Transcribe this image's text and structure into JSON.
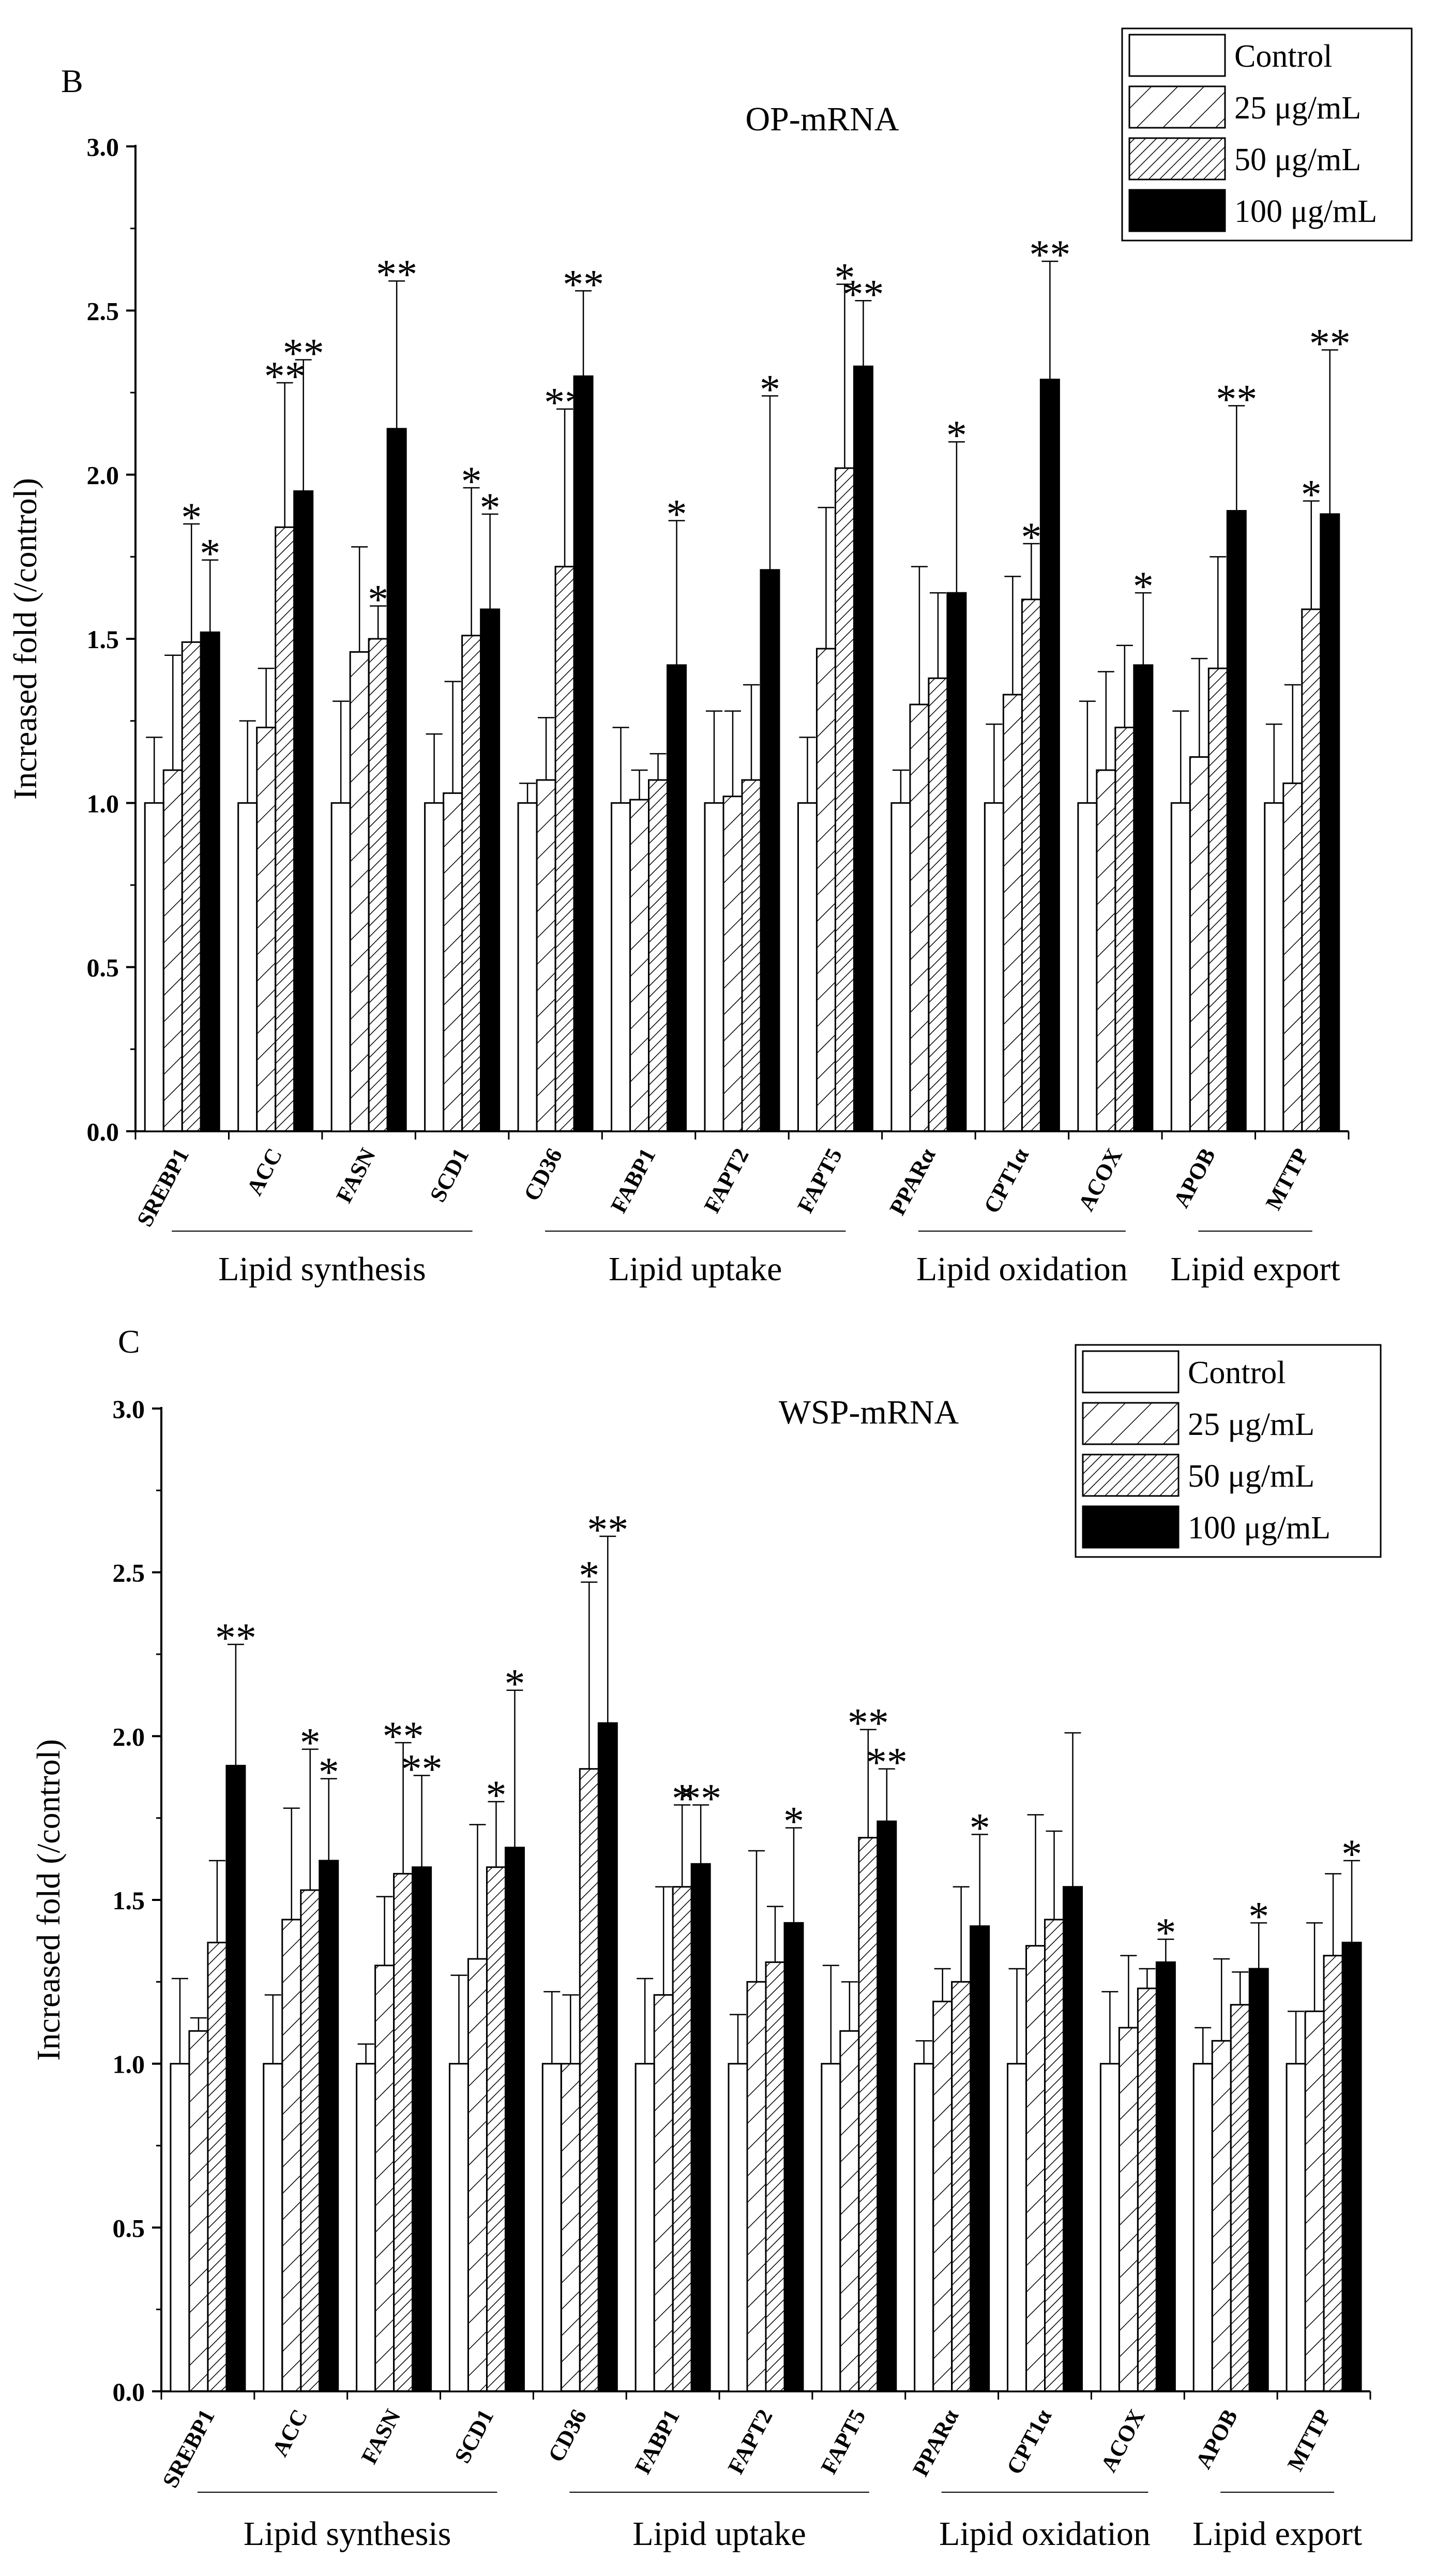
{
  "chart_data": [
    {
      "type": "bar",
      "panel_label": "B",
      "title": "OP-mRNA",
      "xlabel": "",
      "ylabel": "Increased fold (/control)",
      "ylim": [
        0,
        3
      ],
      "yticks": [
        "0.0",
        "0.5",
        "1.0",
        "1.5",
        "2.0",
        "2.5",
        "3.0"
      ],
      "grid": false,
      "legend_position": "top-right",
      "categories": [
        "SREBP1",
        "ACC",
        "FASN",
        "SCD1",
        "CD36",
        "FABP1",
        "FAPT2",
        "FAPT5",
        "PPARα",
        "CPT1α",
        "ACOX",
        "APOB",
        "MTTP"
      ],
      "groups": [
        {
          "label": "Lipid synthesis",
          "from": 0,
          "to": 3
        },
        {
          "label": "Lipid uptake",
          "from": 4,
          "to": 7
        },
        {
          "label": "Lipid oxidation",
          "from": 8,
          "to": 10
        },
        {
          "label": "Lipid export",
          "from": 11,
          "to": 12
        }
      ],
      "series": [
        {
          "name": "Control",
          "fill": "white",
          "values": [
            1,
            1,
            1,
            1,
            1,
            1,
            1,
            1,
            1,
            1,
            1,
            1,
            1
          ],
          "errors": [
            0.2,
            0.25,
            0.31,
            0.21,
            0.06,
            0.23,
            0.28,
            0.2,
            0.1,
            0.24,
            0.31,
            0.28,
            0.24
          ],
          "sig": [
            "",
            "",
            "",
            "",
            "",
            "",
            "",
            "",
            "",
            "",
            "",
            "",
            ""
          ]
        },
        {
          "name": "25 μg/mL",
          "fill": "sparse-hatch",
          "values": [
            1.1,
            1.23,
            1.46,
            1.03,
            1.07,
            1.01,
            1.02,
            1.47,
            1.3,
            1.33,
            1.1,
            1.14,
            1.06
          ],
          "errors": [
            0.35,
            0.18,
            0.32,
            0.34,
            0.19,
            0.09,
            0.26,
            0.43,
            0.42,
            0.36,
            0.3,
            0.3,
            0.3
          ],
          "sig": [
            "",
            "",
            "",
            "",
            "",
            "",
            "",
            "",
            "",
            "",
            "",
            "",
            ""
          ]
        },
        {
          "name": "50 μg/mL",
          "fill": "dense-hatch",
          "values": [
            1.49,
            1.84,
            1.5,
            1.51,
            1.72,
            1.07,
            1.07,
            2.02,
            1.38,
            1.62,
            1.23,
            1.41,
            1.59
          ],
          "errors": [
            0.36,
            0.44,
            0.1,
            0.45,
            0.48,
            0.08,
            0.29,
            0.56,
            0.26,
            0.17,
            0.25,
            0.34,
            0.33
          ],
          "sig": [
            "*",
            "**",
            "*",
            "*",
            "**",
            "",
            "",
            "*",
            "",
            "*",
            "",
            "",
            "*"
          ]
        },
        {
          "name": "100 μg/mL",
          "fill": "black",
          "values": [
            1.52,
            1.95,
            2.14,
            1.59,
            2.3,
            1.42,
            1.71,
            2.33,
            1.64,
            2.29,
            1.42,
            1.89,
            1.88
          ],
          "errors": [
            0.22,
            0.4,
            0.45,
            0.29,
            0.26,
            0.44,
            0.53,
            0.2,
            0.46,
            0.36,
            0.22,
            0.32,
            0.5
          ],
          "sig": [
            "*",
            "**",
            "**",
            "*",
            "**",
            "*",
            "*",
            "**",
            "*",
            "**",
            "*",
            "**",
            "**"
          ]
        }
      ]
    },
    {
      "type": "bar",
      "panel_label": "C",
      "title": "WSP-mRNA",
      "xlabel": "",
      "ylabel": "Increased fold (/control)",
      "ylim": [
        0,
        3
      ],
      "yticks": [
        "0.0",
        "0.5",
        "1.0",
        "1.5",
        "2.0",
        "2.5",
        "3.0"
      ],
      "grid": false,
      "legend_position": "top-right",
      "categories": [
        "SREBP1",
        "ACC",
        "FASN",
        "SCD1",
        "CD36",
        "FABP1",
        "FAPT2",
        "FAPT5",
        "PPARα",
        "CPT1α",
        "ACOX",
        "APOB",
        "MTTP"
      ],
      "groups": [
        {
          "label": "Lipid synthesis",
          "from": 0,
          "to": 3
        },
        {
          "label": "Lipid uptake",
          "from": 4,
          "to": 7
        },
        {
          "label": "Lipid oxidation",
          "from": 8,
          "to": 10
        },
        {
          "label": "Lipid export",
          "from": 11,
          "to": 12
        }
      ],
      "series": [
        {
          "name": "Control",
          "fill": "white",
          "values": [
            1,
            1,
            1,
            1,
            1,
            1,
            1,
            1,
            1,
            1,
            1,
            1,
            1
          ],
          "errors": [
            0.26,
            0.21,
            0.06,
            0.27,
            0.22,
            0.26,
            0.15,
            0.3,
            0.07,
            0.29,
            0.22,
            0.11,
            0.16
          ],
          "sig": [
            "",
            "",
            "",
            "",
            "",
            "",
            "",
            "",
            "",
            "",
            "",
            "",
            ""
          ]
        },
        {
          "name": "25 μg/mL",
          "fill": "sparse-hatch",
          "values": [
            1.1,
            1.44,
            1.3,
            1.32,
            1.0,
            1.21,
            1.25,
            1.1,
            1.19,
            1.36,
            1.11,
            1.07,
            1.16
          ],
          "errors": [
            0.04,
            0.34,
            0.21,
            0.41,
            0.21,
            0.33,
            0.4,
            0.15,
            0.1,
            0.4,
            0.22,
            0.25,
            0.27
          ],
          "sig": [
            "",
            "",
            "",
            "",
            "",
            "",
            "",
            "",
            "",
            "",
            "",
            "",
            ""
          ]
        },
        {
          "name": "50 μg/mL",
          "fill": "dense-hatch",
          "values": [
            1.37,
            1.53,
            1.58,
            1.6,
            1.9,
            1.54,
            1.31,
            1.69,
            1.25,
            1.44,
            1.23,
            1.18,
            1.33
          ],
          "errors": [
            0.25,
            0.43,
            0.4,
            0.2,
            0.57,
            0.25,
            0.17,
            0.33,
            0.29,
            0.27,
            0.06,
            0.1,
            0.25
          ],
          "sig": [
            "",
            "*",
            "**",
            "*",
            "*",
            "*",
            "",
            "**",
            "",
            "",
            "",
            "",
            ""
          ]
        },
        {
          "name": "100 μg/mL",
          "fill": "black",
          "values": [
            1.91,
            1.62,
            1.6,
            1.66,
            2.04,
            1.61,
            1.43,
            1.74,
            1.42,
            1.54,
            1.31,
            1.29,
            1.37
          ],
          "errors": [
            0.37,
            0.25,
            0.28,
            0.48,
            0.57,
            0.18,
            0.29,
            0.16,
            0.28,
            0.47,
            0.07,
            0.14,
            0.25
          ],
          "sig": [
            "**",
            "*",
            "**",
            "*",
            "**",
            "**",
            "*",
            "**",
            "*",
            "",
            "*",
            "*",
            "*"
          ]
        }
      ]
    }
  ]
}
